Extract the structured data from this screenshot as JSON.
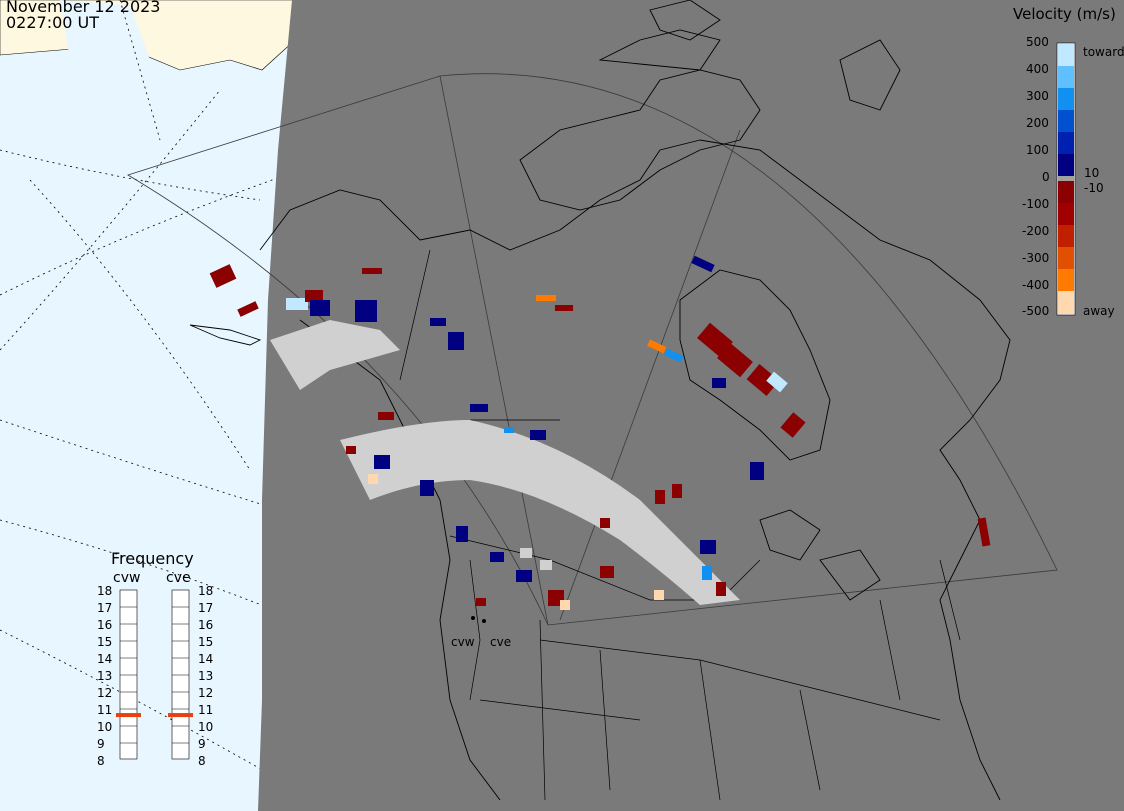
{
  "header": {
    "date": "November 12 2023",
    "time": "0227:00 UT"
  },
  "colorbar": {
    "title": "Velocity (m/s)",
    "ticks": [
      "500",
      "400",
      "300",
      "200",
      "100",
      "10",
      "0",
      "-10",
      "-100",
      "-200",
      "-300",
      "-400",
      "-500"
    ],
    "toward_label": "toward",
    "away_label": "away",
    "colors": [
      "#ffd8b0",
      "#ffa040",
      "#ff7a00",
      "#e05000",
      "#c02000",
      "#8b0000",
      "#a0a0a0",
      "#000080",
      "#0020b0",
      "#0050d0",
      "#1090f0",
      "#60c0ff",
      "#c0e8ff"
    ]
  },
  "frequency": {
    "title": "Frequency",
    "radars": [
      "cvw",
      "cve"
    ],
    "scale": [
      "18",
      "17",
      "16",
      "15",
      "14",
      "13",
      "12",
      "11",
      "10",
      "9",
      "8"
    ],
    "values_mhz": [
      10.6,
      10.6
    ],
    "marker_color": "#e84010"
  },
  "map": {
    "site_labels": [
      "cvw",
      "cve"
    ],
    "ocean_color": "#e8f6ff",
    "land_color": "#fff8e0",
    "night_color": "#7a7a7a",
    "low_velocity_color": "#d0d0d0"
  }
}
